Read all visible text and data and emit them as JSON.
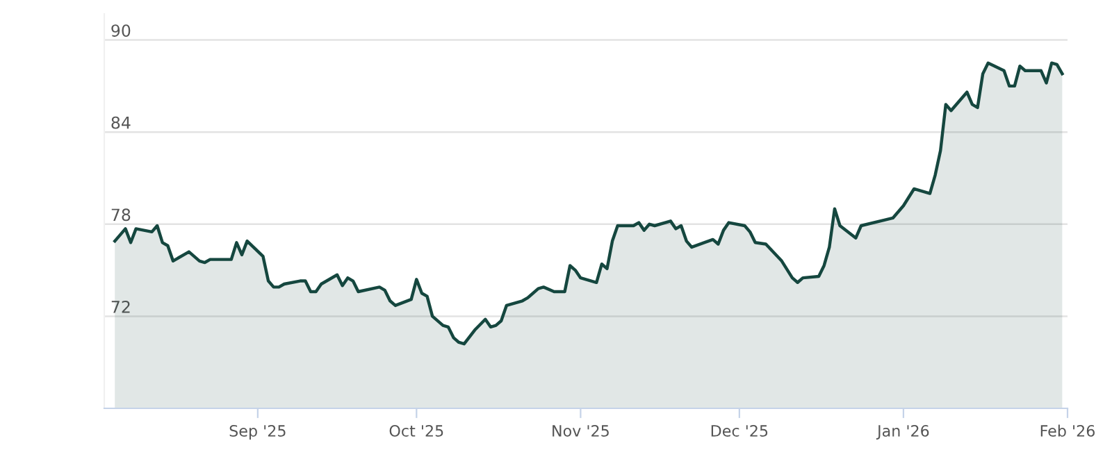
{
  "chart_data": {
    "type": "area",
    "x": [
      "2025-08-05",
      "2025-08-07",
      "2025-08-08",
      "2025-08-09",
      "2025-08-12",
      "2025-08-13",
      "2025-08-14",
      "2025-08-15",
      "2025-08-16",
      "2025-08-19",
      "2025-08-21",
      "2025-08-22",
      "2025-08-23",
      "2025-08-26",
      "2025-08-27",
      "2025-08-28",
      "2025-08-29",
      "2025-08-30",
      "2025-09-02",
      "2025-09-03",
      "2025-09-04",
      "2025-09-05",
      "2025-09-06",
      "2025-09-09",
      "2025-09-10",
      "2025-09-11",
      "2025-09-12",
      "2025-09-13",
      "2025-09-16",
      "2025-09-17",
      "2025-09-18",
      "2025-09-19",
      "2025-09-20",
      "2025-09-24",
      "2025-09-25",
      "2025-09-26",
      "2025-09-27",
      "2025-09-30",
      "2025-10-01",
      "2025-10-02",
      "2025-10-03",
      "2025-10-04",
      "2025-10-06",
      "2025-10-07",
      "2025-10-08",
      "2025-10-09",
      "2025-10-10",
      "2025-10-12",
      "2025-10-14",
      "2025-10-15",
      "2025-10-16",
      "2025-10-17",
      "2025-10-18",
      "2025-10-21",
      "2025-10-22",
      "2025-10-24",
      "2025-10-25",
      "2025-10-27",
      "2025-10-29",
      "2025-10-30",
      "2025-10-31",
      "2025-11-01",
      "2025-11-04",
      "2025-11-05",
      "2025-11-06",
      "2025-11-07",
      "2025-11-08",
      "2025-11-11",
      "2025-11-12",
      "2025-11-13",
      "2025-11-14",
      "2025-11-15",
      "2025-11-18",
      "2025-11-19",
      "2025-11-20",
      "2025-11-21",
      "2025-11-22",
      "2025-11-26",
      "2025-11-27",
      "2025-11-28",
      "2025-11-29",
      "2025-12-02",
      "2025-12-03",
      "2025-12-04",
      "2025-12-06",
      "2025-12-09",
      "2025-12-11",
      "2025-12-12",
      "2025-12-13",
      "2025-12-16",
      "2025-12-17",
      "2025-12-18",
      "2025-12-19",
      "2025-12-20",
      "2025-12-23",
      "2025-12-24",
      "2025-12-30",
      "2026-01-01",
      "2026-01-03",
      "2026-01-06",
      "2026-01-07",
      "2026-01-08",
      "2026-01-09",
      "2026-01-10",
      "2026-01-13",
      "2026-01-14",
      "2026-01-15",
      "2026-01-16",
      "2026-01-17",
      "2026-01-20",
      "2026-01-21",
      "2026-01-22",
      "2026-01-23",
      "2026-01-24",
      "2026-01-27",
      "2026-01-28",
      "2026-01-29",
      "2026-01-30",
      "2026-01-31"
    ],
    "series": [
      {
        "color": "#15473f",
        "values": [
          76.9,
          77.7,
          76.8,
          77.7,
          77.5,
          77.9,
          76.8,
          76.6,
          75.6,
          76.2,
          75.6,
          75.5,
          75.7,
          75.7,
          75.7,
          76.8,
          76.0,
          76.9,
          75.9,
          74.3,
          73.9,
          73.9,
          74.1,
          74.3,
          74.3,
          73.6,
          73.6,
          74.1,
          74.7,
          74.0,
          74.5,
          74.3,
          73.6,
          73.9,
          73.7,
          73.0,
          72.7,
          73.1,
          74.4,
          73.5,
          73.3,
          72.0,
          71.4,
          71.3,
          70.6,
          70.3,
          70.2,
          71.1,
          71.8,
          71.3,
          71.4,
          71.7,
          72.7,
          73.0,
          73.2,
          73.8,
          73.9,
          73.6,
          73.6,
          75.3,
          75.0,
          74.5,
          74.2,
          75.4,
          75.1,
          76.9,
          77.9,
          77.9,
          78.1,
          77.6,
          78.0,
          77.9,
          78.2,
          77.7,
          77.9,
          76.9,
          76.5,
          77.0,
          76.7,
          77.6,
          78.1,
          77.9,
          77.5,
          76.8,
          76.7,
          75.6,
          74.5,
          74.2,
          74.5,
          74.6,
          75.3,
          76.5,
          79.0,
          77.9,
          77.1,
          77.9,
          78.4,
          79.2,
          80.3,
          80.0,
          81.2,
          82.8,
          85.8,
          85.4,
          86.6,
          85.8,
          85.6,
          87.8,
          88.5,
          88.0,
          87.0,
          87.0,
          88.3,
          88.0,
          88.0,
          87.2,
          88.5,
          88.4,
          87.8
        ]
      }
    ],
    "xlim": [
      "2025-08-03",
      "2026-02-01"
    ],
    "xticks": [
      {
        "value": "2025-09-01",
        "label": "Sep '25"
      },
      {
        "value": "2025-10-01",
        "label": "Oct '25"
      },
      {
        "value": "2025-11-01",
        "label": "Nov '25"
      },
      {
        "value": "2025-12-01",
        "label": "Dec '25"
      },
      {
        "value": "2026-01-01",
        "label": "Jan '26"
      },
      {
        "value": "2026-02-01",
        "label": "Feb '26"
      }
    ],
    "ylim": [
      66,
      91.7
    ],
    "yticks": [
      72,
      78,
      84,
      90
    ],
    "grid": "y",
    "marker": "none",
    "line_style": "solid"
  }
}
